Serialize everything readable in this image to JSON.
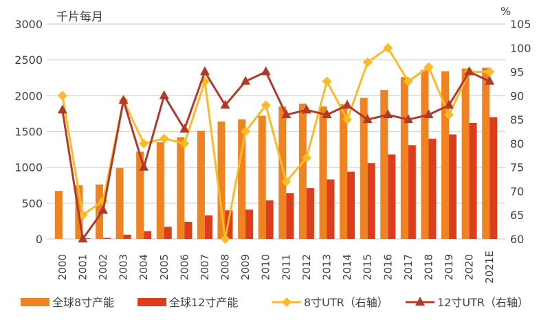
{
  "chart_data": {
    "type": "bar+line",
    "left_unit": "千片每月",
    "right_unit": "%",
    "categories": [
      "2000",
      "2001",
      "2002",
      "2003",
      "2004",
      "2005",
      "2006",
      "2007",
      "2008",
      "2009",
      "2010",
      "2011",
      "2012",
      "2013",
      "2014",
      "2015",
      "2016",
      "2017",
      "2018",
      "2019",
      "2020",
      "2021E"
    ],
    "ylim_left": [
      0,
      3000
    ],
    "yticks_left": [
      0,
      500,
      1000,
      1500,
      2000,
      2500,
      3000
    ],
    "ylim_right": [
      60,
      105
    ],
    "yticks_right": [
      60,
      65,
      70,
      75,
      80,
      85,
      90,
      95,
      100,
      105
    ],
    "grid": true,
    "legend_position": "bottom",
    "series": [
      {
        "name": "全球8寸产能",
        "type": "bar",
        "axis": "left",
        "color": "#F08321",
        "values": [
          670,
          750,
          760,
          990,
          1220,
          1350,
          1420,
          1510,
          1640,
          1670,
          1720,
          1850,
          1890,
          1850,
          1880,
          1970,
          2080,
          2260,
          2360,
          2340,
          2380,
          2390
        ]
      },
      {
        "name": "全球12寸产能",
        "type": "bar",
        "axis": "left",
        "color": "#DC3D1B",
        "values": [
          0,
          10,
          15,
          60,
          110,
          170,
          240,
          330,
          400,
          410,
          540,
          640,
          710,
          830,
          940,
          1060,
          1180,
          1310,
          1400,
          1460,
          1620,
          1700
        ]
      },
      {
        "name": "8寸UTR（右轴）",
        "type": "line",
        "axis": "right",
        "color": "#FBBA26",
        "marker": "diamond",
        "values": [
          90,
          65,
          68,
          89,
          80,
          81,
          80,
          93,
          59,
          82.5,
          88,
          72,
          77,
          93,
          85,
          97,
          100,
          93,
          96,
          86,
          95,
          95
        ]
      },
      {
        "name": "12寸UTR（右轴）",
        "type": "line",
        "axis": "right",
        "color": "#B03A2A",
        "marker": "triangle",
        "values": [
          87,
          60,
          66,
          89,
          75,
          90,
          83,
          95,
          88,
          93,
          95,
          86,
          87,
          86,
          88,
          85,
          86,
          85,
          86,
          88,
          95,
          93
        ]
      }
    ]
  }
}
